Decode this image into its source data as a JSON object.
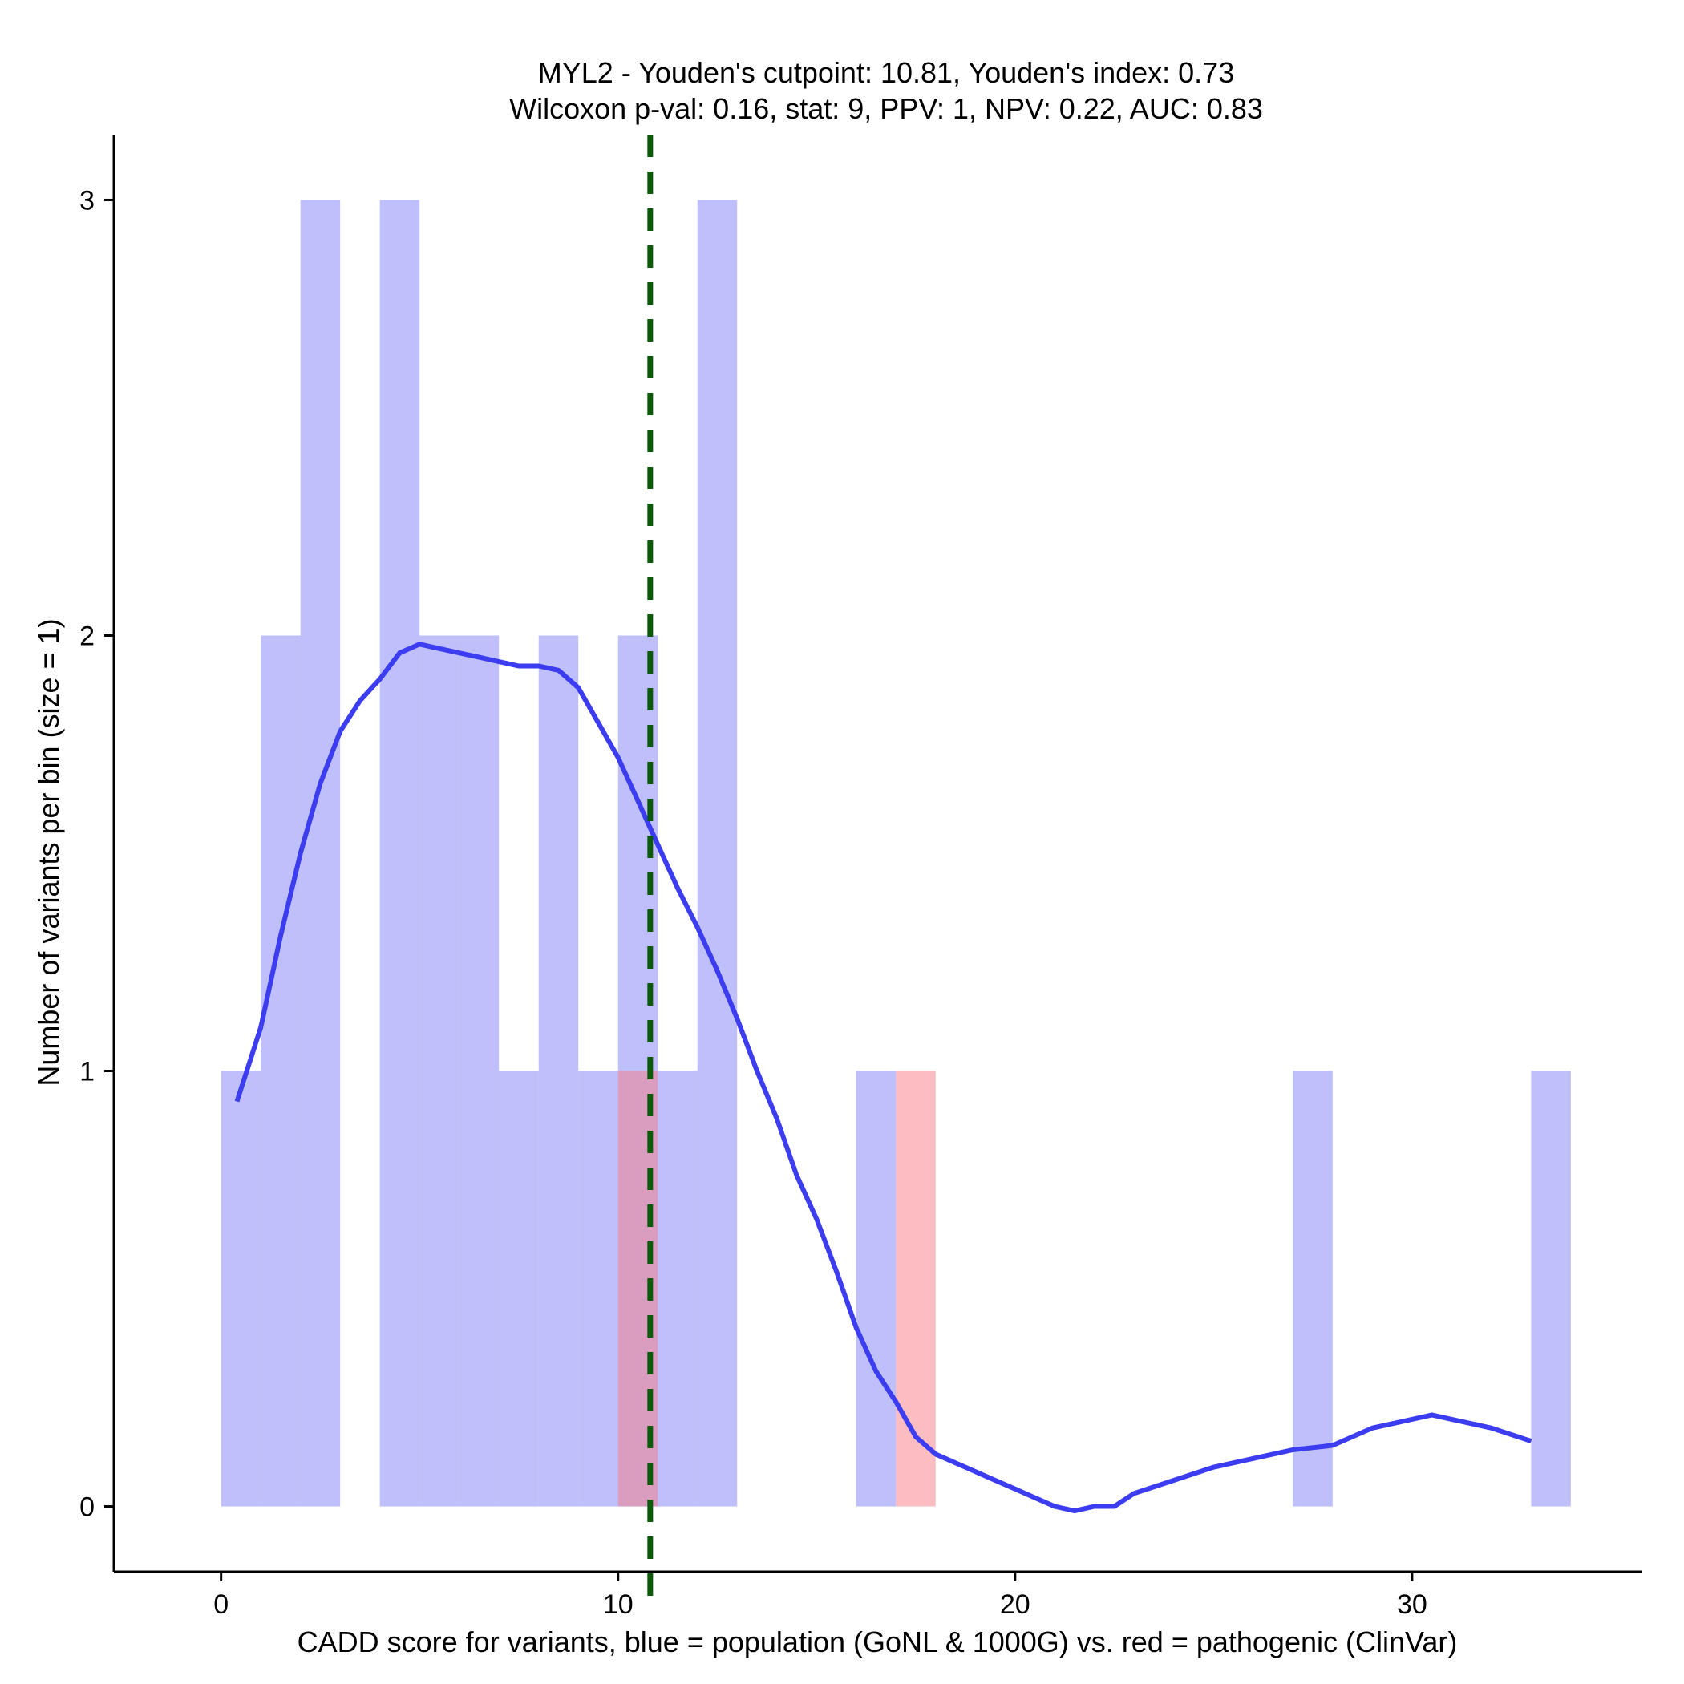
{
  "chart_data": {
    "type": "histogram",
    "title_line1": "MYL2 - Youden's cutpoint: 10.81, Youden's index: 0.73",
    "title_line2": "Wilcoxon p-val: 0.16, stat: 9, PPV: 1, NPV: 0.22, AUC: 0.83",
    "xlabel": "CADD score for variants, blue = population (GoNL & 1000G) vs. red = pathogenic (ClinVar)",
    "ylabel": "Number of variants per bin (size = 1)",
    "xlim": [
      -2.7,
      35.8
    ],
    "ylim": [
      -0.15,
      3.15
    ],
    "x_ticks": [
      0,
      10,
      20,
      30
    ],
    "y_ticks": [
      0,
      1,
      2,
      3
    ],
    "bin_width": 1,
    "cutpoint": 10.81,
    "colors": {
      "population": "#8080f8",
      "pathogenic": "#f87c84",
      "density": "#3c3cf0",
      "cutpoint": "#0a5a0a"
    },
    "series": [
      {
        "name": "population",
        "bins": [
          {
            "start": 0,
            "count": 1
          },
          {
            "start": 1,
            "count": 2
          },
          {
            "start": 2,
            "count": 3
          },
          {
            "start": 4,
            "count": 3
          },
          {
            "start": 5,
            "count": 2
          },
          {
            "start": 6,
            "count": 2
          },
          {
            "start": 7,
            "count": 1
          },
          {
            "start": 8,
            "count": 2
          },
          {
            "start": 9,
            "count": 1
          },
          {
            "start": 10,
            "count": 2
          },
          {
            "start": 11,
            "count": 1
          },
          {
            "start": 12,
            "count": 3
          },
          {
            "start": 16,
            "count": 1
          },
          {
            "start": 27,
            "count": 1
          },
          {
            "start": 33,
            "count": 1
          }
        ]
      },
      {
        "name": "pathogenic",
        "bins": [
          {
            "start": 10,
            "count": 1
          },
          {
            "start": 17,
            "count": 1
          }
        ]
      }
    ],
    "density_curve": {
      "x": [
        0.4,
        1.0,
        1.5,
        2.0,
        2.5,
        3.0,
        3.5,
        4.0,
        4.5,
        5.0,
        5.5,
        6.0,
        6.5,
        7.0,
        7.5,
        8.0,
        8.5,
        9.0,
        9.5,
        10.0,
        10.5,
        11.0,
        11.5,
        12.0,
        12.5,
        13.0,
        13.5,
        14.0,
        14.5,
        15.0,
        15.5,
        16.0,
        16.5,
        17.0,
        17.5,
        18.0,
        18.5,
        19.0,
        19.5,
        20.0,
        20.5,
        21.0,
        21.5,
        22.0,
        22.5,
        23.0,
        24.0,
        25.0,
        26.0,
        27.0,
        28.0,
        29.0,
        30.0,
        30.5,
        31.0,
        32.0,
        33.0
      ],
      "y": [
        0.93,
        1.1,
        1.31,
        1.5,
        1.66,
        1.78,
        1.85,
        1.9,
        1.96,
        1.98,
        1.97,
        1.96,
        1.95,
        1.94,
        1.93,
        1.93,
        1.92,
        1.88,
        1.8,
        1.72,
        1.62,
        1.52,
        1.42,
        1.33,
        1.23,
        1.12,
        1.0,
        0.89,
        0.76,
        0.66,
        0.54,
        0.41,
        0.31,
        0.24,
        0.16,
        0.12,
        0.1,
        0.08,
        0.06,
        0.04,
        0.02,
        0.0,
        -0.01,
        0.0,
        0.0,
        0.03,
        0.06,
        0.09,
        0.11,
        0.13,
        0.14,
        0.18,
        0.2,
        0.21,
        0.2,
        0.18,
        0.15
      ]
    }
  }
}
